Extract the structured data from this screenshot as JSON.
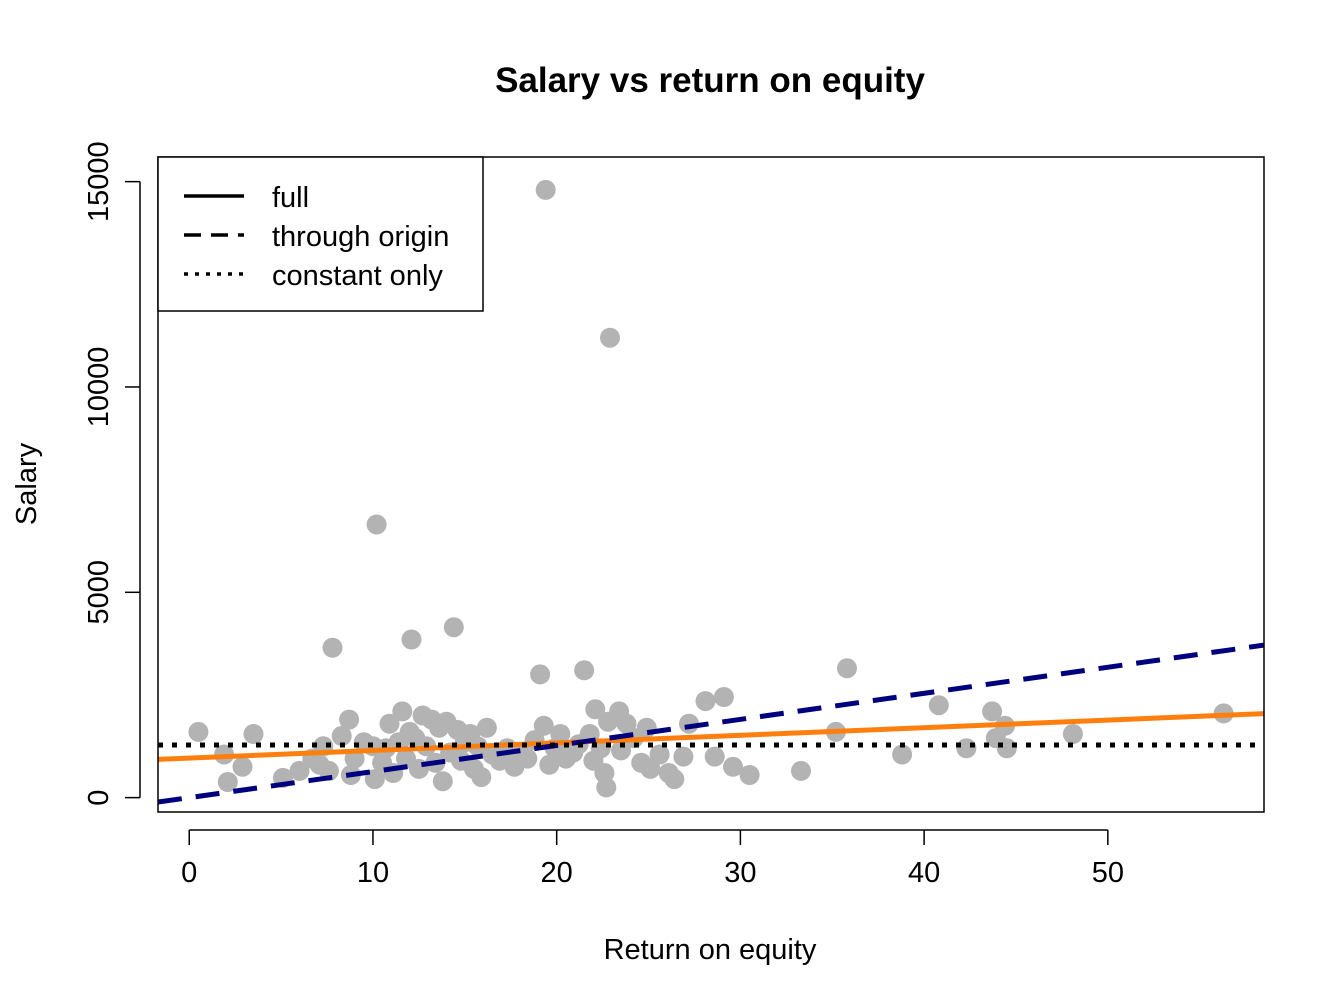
{
  "chart_data": {
    "type": "scatter",
    "title": "Salary vs return on equity",
    "xlabel": "Return on equity",
    "ylabel": "Salary",
    "xlim": [
      -1.7,
      58.5
    ],
    "ylim": [
      -350,
      15600
    ],
    "x_ticks": [
      0,
      10,
      20,
      30,
      40,
      50
    ],
    "y_ticks": [
      0,
      5000,
      10000,
      15000
    ],
    "grid": false,
    "legend_position": "top-left",
    "point_color": "#b3b3b3",
    "points": [
      [
        0.5,
        1600
      ],
      [
        1.9,
        1050
      ],
      [
        2.1,
        380
      ],
      [
        2.9,
        750
      ],
      [
        3.5,
        1550
      ],
      [
        5.1,
        480
      ],
      [
        6.0,
        650
      ],
      [
        6.7,
        950
      ],
      [
        7.1,
        800
      ],
      [
        7.3,
        1250
      ],
      [
        7.6,
        650
      ],
      [
        7.8,
        3650
      ],
      [
        8.3,
        1500
      ],
      [
        8.7,
        1900
      ],
      [
        8.8,
        550
      ],
      [
        9.0,
        950
      ],
      [
        9.5,
        1350
      ],
      [
        10.0,
        1250
      ],
      [
        10.1,
        450
      ],
      [
        10.2,
        6650
      ],
      [
        10.5,
        850
      ],
      [
        10.7,
        1200
      ],
      [
        10.9,
        1800
      ],
      [
        11.1,
        600
      ],
      [
        11.4,
        1350
      ],
      [
        11.6,
        2100
      ],
      [
        11.8,
        950
      ],
      [
        12.0,
        1600
      ],
      [
        12.1,
        3850
      ],
      [
        12.3,
        1450
      ],
      [
        12.5,
        700
      ],
      [
        12.7,
        2000
      ],
      [
        12.9,
        1250
      ],
      [
        13.2,
        1900
      ],
      [
        13.4,
        850
      ],
      [
        13.6,
        1700
      ],
      [
        13.8,
        400
      ],
      [
        14.0,
        1850
      ],
      [
        14.2,
        1100
      ],
      [
        14.4,
        4150
      ],
      [
        14.6,
        1650
      ],
      [
        14.8,
        900
      ],
      [
        15.0,
        1350
      ],
      [
        15.3,
        1550
      ],
      [
        15.5,
        700
      ],
      [
        15.7,
        1250
      ],
      [
        15.9,
        500
      ],
      [
        16.2,
        1700
      ],
      [
        16.5,
        1050
      ],
      [
        16.9,
        900
      ],
      [
        17.3,
        1200
      ],
      [
        17.7,
        750
      ],
      [
        18.0,
        1100
      ],
      [
        18.4,
        950
      ],
      [
        18.8,
        1400
      ],
      [
        19.1,
        3000
      ],
      [
        19.3,
        1750
      ],
      [
        19.4,
        14800
      ],
      [
        19.6,
        800
      ],
      [
        19.9,
        1200
      ],
      [
        20.2,
        1550
      ],
      [
        20.5,
        950
      ],
      [
        20.9,
        1100
      ],
      [
        21.2,
        1300
      ],
      [
        21.5,
        3100
      ],
      [
        21.8,
        1550
      ],
      [
        22.0,
        900
      ],
      [
        22.1,
        2150
      ],
      [
        22.4,
        1200
      ],
      [
        22.6,
        600
      ],
      [
        22.7,
        250
      ],
      [
        22.8,
        1850
      ],
      [
        22.9,
        11200
      ],
      [
        23.4,
        2100
      ],
      [
        23.5,
        1150
      ],
      [
        23.8,
        1800
      ],
      [
        24.2,
        1450
      ],
      [
        24.6,
        850
      ],
      [
        24.9,
        1700
      ],
      [
        25.1,
        700
      ],
      [
        25.6,
        1050
      ],
      [
        26.1,
        600
      ],
      [
        26.4,
        450
      ],
      [
        26.9,
        1000
      ],
      [
        27.2,
        1800
      ],
      [
        28.1,
        2350
      ],
      [
        28.6,
        1000
      ],
      [
        29.1,
        2450
      ],
      [
        29.6,
        750
      ],
      [
        30.5,
        550
      ],
      [
        33.3,
        650
      ],
      [
        35.2,
        1600
      ],
      [
        35.8,
        3150
      ],
      [
        38.8,
        1050
      ],
      [
        40.8,
        2250
      ],
      [
        42.3,
        1200
      ],
      [
        43.7,
        2100
      ],
      [
        43.9,
        1450
      ],
      [
        44.4,
        1750
      ],
      [
        44.5,
        1200
      ],
      [
        48.1,
        1550
      ],
      [
        56.3,
        2050
      ]
    ],
    "series": [
      {
        "name": "full",
        "kind": "line",
        "color": "#ff7f0e",
        "line_style": "solid",
        "intercept": 963,
        "slope": 18.5
      },
      {
        "name": "through origin",
        "kind": "line",
        "color": "#00007f",
        "line_style": "dashed",
        "intercept": 0,
        "slope": 63.5
      },
      {
        "name": "constant only",
        "kind": "line",
        "color": "#000000",
        "line_style": "dotted",
        "intercept": 1281,
        "slope": 0
      }
    ]
  }
}
